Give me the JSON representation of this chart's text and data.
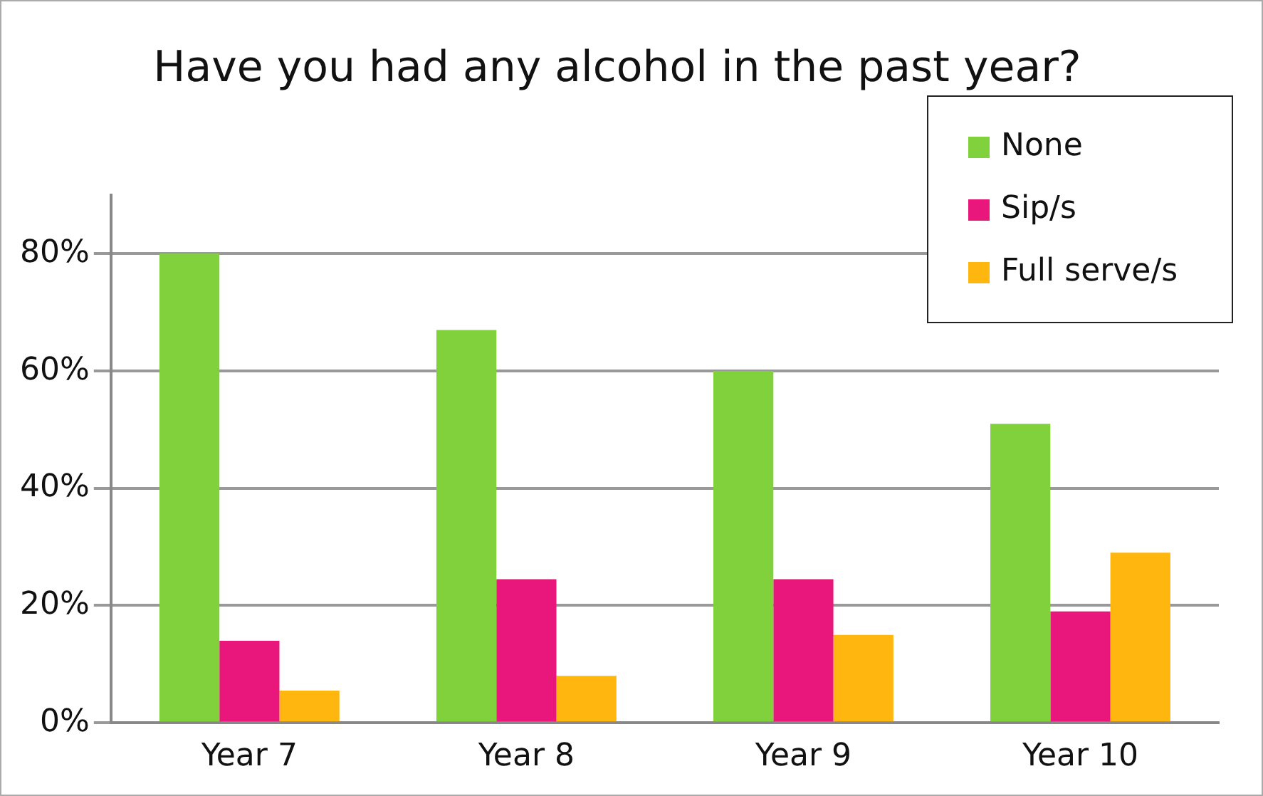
{
  "chart_data": {
    "type": "bar",
    "title": "Have you had any alcohol in the past year?",
    "categories": [
      "Year 7",
      "Year 8",
      "Year 9",
      "Year 10"
    ],
    "series": [
      {
        "name": "None",
        "color": "#80d13c",
        "values": [
          80,
          67,
          60,
          51
        ]
      },
      {
        "name": "Sip/s",
        "color": "#e9177b",
        "values": [
          14,
          24.5,
          24.5,
          19
        ]
      },
      {
        "name": "Full serve/s",
        "color": "#ffb60f",
        "values": [
          5.5,
          8,
          15,
          29
        ]
      }
    ],
    "ylim": [
      0,
      90
    ],
    "yticks": [
      {
        "value": 0,
        "label": "0%"
      },
      {
        "value": 20,
        "label": "20%"
      },
      {
        "value": 40,
        "label": "40%"
      },
      {
        "value": 60,
        "label": "60%"
      },
      {
        "value": 80,
        "label": "80%"
      }
    ],
    "grid": "y",
    "legend": "top right"
  }
}
